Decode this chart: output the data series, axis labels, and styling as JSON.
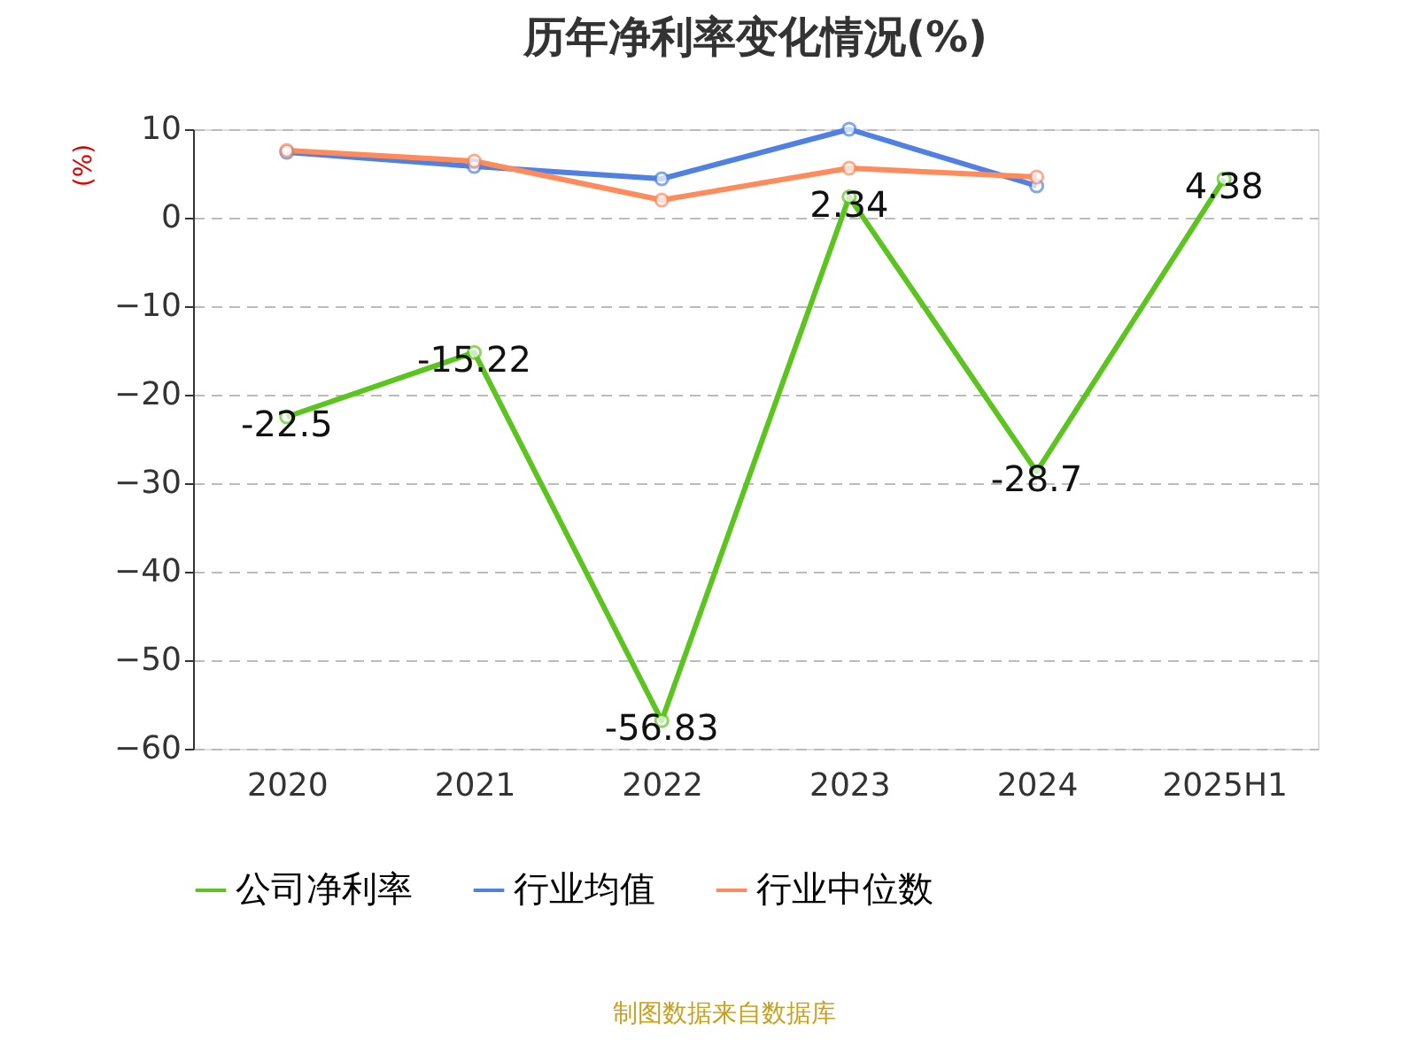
{
  "chart_data": {
    "type": "line",
    "title": "历年净利率变化情况(%)",
    "ylabel": "(%)",
    "categories": [
      "2020",
      "2021",
      "2022",
      "2023",
      "2024",
      "2025H1"
    ],
    "series": [
      {
        "name": "公司净利率",
        "color": "#5cc41e",
        "values": [
          -22.5,
          -15.22,
          -56.83,
          2.34,
          -28.7,
          4.38
        ],
        "value_labels": [
          "-22.5",
          "-15.22",
          "-56.83",
          "2.34",
          "-28.7",
          "4.38"
        ]
      },
      {
        "name": "行业均值",
        "color": "#4f80e2",
        "values": [
          7.4,
          5.8,
          4.4,
          10.0,
          3.6,
          null
        ]
      },
      {
        "name": "行业中位数",
        "color": "#ff8a5c",
        "values": [
          7.6,
          6.4,
          2.0,
          5.6,
          4.6,
          null
        ]
      }
    ],
    "ylim": [
      -60,
      10
    ],
    "yticks": [
      10,
      0,
      -10,
      -20,
      -30,
      -40,
      -50,
      -60
    ],
    "grid": "y",
    "legend": "bottom",
    "marker": "circle",
    "line_style": "solid",
    "annotations": [
      "制图数据来自数据库"
    ]
  }
}
